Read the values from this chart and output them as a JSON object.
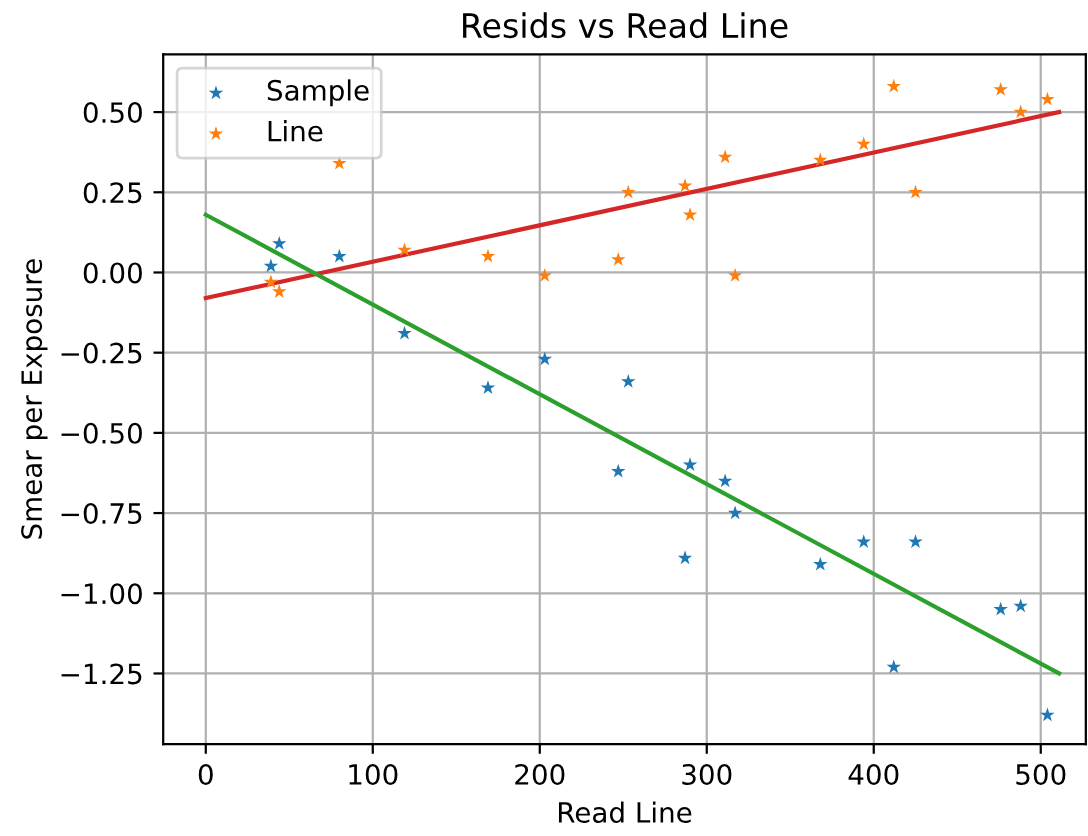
{
  "chart_data": {
    "type": "scatter",
    "title": "Resids vs Read Line",
    "xlabel": "Read Line",
    "ylabel": "Smear per Exposure",
    "xlim": [
      -25.5,
      527
    ],
    "ylim": [
      -1.47,
      0.68
    ],
    "xticks": [
      0,
      100,
      200,
      300,
      400,
      500
    ],
    "yticks": [
      {
        "value": -1.25,
        "label": "−1.25"
      },
      {
        "value": -1.0,
        "label": "−1.00"
      },
      {
        "value": -0.75,
        "label": "−0.75"
      },
      {
        "value": -0.5,
        "label": "−0.50"
      },
      {
        "value": -0.25,
        "label": "−0.25"
      },
      {
        "value": 0,
        "label": "0.00"
      },
      {
        "value": 0.25,
        "label": "0.25"
      },
      {
        "value": 0.5,
        "label": "0.50"
      }
    ],
    "grid": true,
    "legend": "top left",
    "series": [
      {
        "name": "Sample",
        "color": "#1f77b4",
        "marker": "star",
        "x": [
          39,
          44,
          80,
          119,
          169,
          203,
          253,
          247,
          290,
          311,
          317,
          287,
          368,
          394,
          425,
          412,
          476,
          488,
          504
        ],
        "values": [
          0.02,
          0.09,
          0.05,
          -0.19,
          -0.36,
          -0.27,
          -0.34,
          -0.62,
          -0.6,
          -0.65,
          -0.75,
          -0.89,
          -0.91,
          -0.84,
          -0.84,
          -1.23,
          -1.05,
          -1.04,
          -1.38
        ]
      },
      {
        "name": "Line",
        "color": "#ff7f0e",
        "marker": "star",
        "x": [
          39,
          44,
          80,
          119,
          169,
          203,
          247,
          253,
          287,
          290,
          311,
          317,
          368,
          394,
          412,
          425,
          476,
          488,
          504
        ],
        "values": [
          -0.03,
          -0.06,
          0.34,
          0.07,
          0.05,
          -0.01,
          0.04,
          0.25,
          0.27,
          0.18,
          0.36,
          -0.01,
          0.35,
          0.4,
          0.58,
          0.25,
          0.57,
          0.5,
          0.54
        ]
      },
      {
        "type": "line",
        "color": "#d62728",
        "x": [
          0,
          511
        ],
        "values": [
          -0.08,
          0.5
        ]
      },
      {
        "type": "line",
        "color": "#2ca02c",
        "x": [
          0,
          511
        ],
        "values": [
          0.18,
          -1.25
        ]
      }
    ]
  }
}
